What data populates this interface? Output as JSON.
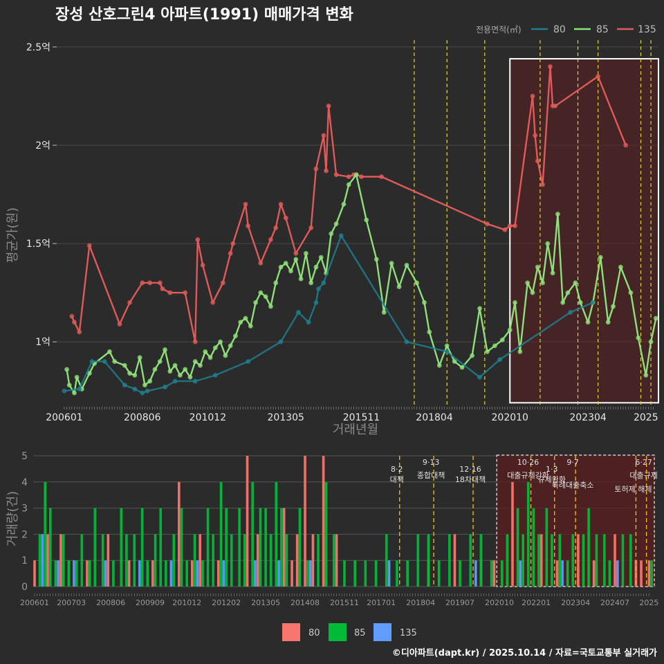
{
  "title": "장성 산호그린4 아파트(1991) 매매가격 변화",
  "caption": "©디아파트(dapt.kr) / 2025.10.14 / 자료=국토교통부 실거래가",
  "colors": {
    "s80": "#1f7f8f",
    "s85": "#8fe07a",
    "s135": "#e05a5a",
    "b80": "#f8766d",
    "b85": "#00ba38",
    "b135": "#619cff",
    "vline": "#e6d23a",
    "vline2": "#f2b705"
  },
  "legend": {
    "title": "전용면적(㎡)",
    "items": [
      "80",
      "85",
      "135"
    ]
  },
  "bottom_legend": {
    "items": [
      "80",
      "85",
      "135"
    ]
  },
  "chart_data": [
    {
      "type": "line",
      "title": "장성 산호그린4 아파트(1991) 매매가격 변화",
      "xlabel": "거래년월",
      "ylabel": "평균가(원)",
      "x_unit": "months since 2006-01",
      "xlim": [
        -3,
        236
      ],
      "ylim": [
        0.67,
        2.57
      ],
      "yticks": [
        1,
        1.5,
        2,
        2.5
      ],
      "ytick_labels": [
        "1억",
        "1.5억",
        "2억",
        "2.5억"
      ],
      "xticks": [
        0,
        31,
        57,
        88,
        118,
        147,
        177,
        208,
        231
      ],
      "xtick_labels": [
        "200601",
        "200806",
        "201012",
        "201305",
        "201511",
        "201804",
        "202010",
        "202304",
        "2025"
      ],
      "highlight_range": [
        177,
        236
      ],
      "policy_lines": [
        139,
        152,
        167,
        189,
        204,
        212,
        229,
        233
      ],
      "series": [
        {
          "name": "135",
          "color_key": "s135",
          "x": [
            3,
            4,
            6,
            10,
            22,
            26,
            31,
            34,
            38,
            39,
            42,
            48,
            52,
            53,
            55,
            59,
            63,
            66,
            67,
            72,
            73,
            78,
            82,
            84,
            86,
            88,
            92,
            98,
            100,
            103,
            104,
            105,
            108,
            113,
            115,
            116,
            118,
            126,
            168,
            175,
            177,
            179,
            186,
            187,
            188,
            190,
            193,
            194,
            195,
            212,
            223
          ],
          "y": [
            1.13,
            1.1,
            1.05,
            1.49,
            1.09,
            1.2,
            1.3,
            1.3,
            1.3,
            1.27,
            1.25,
            1.25,
            1.0,
            1.52,
            1.39,
            1.2,
            1.3,
            1.45,
            1.5,
            1.7,
            1.59,
            1.4,
            1.52,
            1.58,
            1.7,
            1.63,
            1.45,
            1.58,
            1.88,
            2.05,
            1.87,
            2.2,
            1.85,
            1.84,
            1.85,
            1.85,
            1.84,
            1.84,
            1.6,
            1.57,
            1.59,
            1.59,
            2.25,
            2.05,
            1.92,
            1.8,
            2.4,
            2.2,
            2.2,
            2.35,
            2.0
          ]
        },
        {
          "name": "85",
          "color_key": "s85",
          "x": [
            1,
            2,
            4,
            5,
            7,
            10,
            12,
            18,
            20,
            24,
            26,
            28,
            30,
            32,
            34,
            36,
            38,
            40,
            42,
            44,
            46,
            48,
            50,
            52,
            54,
            56,
            58,
            60,
            62,
            64,
            66,
            68,
            70,
            72,
            74,
            76,
            78,
            80,
            82,
            84,
            86,
            88,
            90,
            92,
            94,
            96,
            98,
            100,
            102,
            104,
            106,
            108,
            111,
            113,
            116,
            120,
            124,
            127,
            130,
            133,
            136,
            140,
            143,
            145,
            149,
            152,
            155,
            158,
            162,
            165,
            168,
            171,
            174,
            177,
            179,
            181,
            184,
            186,
            188,
            190,
            192,
            194,
            196,
            198,
            200,
            203,
            205,
            208,
            210,
            213,
            216,
            218,
            221,
            225,
            228,
            231,
            233,
            235
          ],
          "y": [
            0.86,
            0.78,
            0.74,
            0.82,
            0.76,
            0.84,
            0.89,
            0.95,
            0.9,
            0.88,
            0.84,
            0.83,
            0.92,
            0.78,
            0.8,
            0.86,
            0.9,
            0.96,
            0.85,
            0.88,
            0.83,
            0.86,
            0.82,
            0.9,
            0.88,
            0.95,
            0.92,
            0.97,
            1.0,
            0.93,
            0.98,
            1.03,
            1.1,
            1.12,
            1.08,
            1.2,
            1.25,
            1.23,
            1.18,
            1.3,
            1.38,
            1.4,
            1.36,
            1.42,
            1.32,
            1.45,
            1.3,
            1.38,
            1.43,
            1.35,
            1.55,
            1.6,
            1.7,
            1.8,
            1.85,
            1.62,
            1.42,
            1.15,
            1.4,
            1.28,
            1.39,
            1.3,
            1.2,
            1.05,
            0.88,
            0.98,
            0.9,
            0.87,
            0.93,
            1.17,
            0.95,
            0.98,
            1.01,
            1.06,
            1.2,
            0.95,
            1.3,
            1.25,
            1.38,
            1.3,
            1.5,
            1.35,
            1.65,
            1.2,
            1.25,
            1.3,
            1.2,
            1.1,
            1.2,
            1.43,
            1.1,
            1.18,
            1.38,
            1.25,
            1.02,
            0.83,
            1.0,
            1.12
          ]
        },
        {
          "name": "80",
          "color_key": "s80",
          "x": [
            0,
            6,
            11,
            16,
            24,
            28,
            31,
            33,
            40,
            44,
            52,
            60,
            73,
            86,
            93,
            97,
            100,
            101,
            103,
            110,
            136,
            152,
            165,
            173,
            201,
            210
          ],
          "y": [
            0.75,
            0.76,
            0.9,
            0.9,
            0.78,
            0.76,
            0.74,
            0.75,
            0.77,
            0.8,
            0.8,
            0.83,
            0.9,
            1.0,
            1.15,
            1.1,
            1.2,
            1.27,
            1.3,
            1.54,
            1.0,
            0.95,
            0.82,
            0.91,
            1.15,
            1.2
          ]
        }
      ]
    },
    {
      "type": "bar",
      "title": "",
      "xlabel": "",
      "ylabel": "거래량(건)",
      "ylim": [
        0,
        5
      ],
      "yticks": [
        0,
        1,
        2,
        3,
        4,
        5
      ],
      "xticks": [
        0,
        14,
        29,
        44,
        58,
        73,
        88,
        103,
        118,
        132,
        147,
        162,
        177,
        191,
        206,
        221,
        234
      ],
      "xtick_labels": [
        "200601",
        "200703",
        "200806",
        "200909",
        "201012",
        "201202",
        "201305",
        "201408",
        "201511",
        "201701",
        "201804",
        "201907",
        "202010",
        "202201",
        "202304",
        "202407",
        "2025"
      ],
      "highlight_range": [
        176,
        236
      ],
      "policy_events": [
        {
          "x": 139,
          "date": "8·2",
          "label": "대책"
        },
        {
          "x": 152,
          "date": "9·13",
          "label": "종합대책"
        },
        {
          "x": 167,
          "date": "12·16",
          "label": "18차대책"
        },
        {
          "x": 189,
          "date": "10·26",
          "label": "대출규제강화"
        },
        {
          "x": 198,
          "date": "1·3",
          "label": "규제완화"
        },
        {
          "x": 206,
          "date": "9·7",
          "label": "특례대출축소"
        },
        {
          "x": 229,
          "date": "",
          "label": "토허제 해제"
        },
        {
          "x": 233,
          "date": "6·27",
          "label": "대출규제"
        }
      ],
      "series": [
        {
          "name": "80",
          "color_key": "b80",
          "x": [
            0,
            5,
            10,
            20,
            28,
            36,
            45,
            55,
            60,
            63,
            70,
            81,
            85,
            95,
            98,
            100,
            103,
            106,
            110,
            115,
            150,
            160,
            170,
            175,
            182,
            193,
            199,
            207,
            213,
            221,
            229,
            231,
            234
          ],
          "y": [
            1,
            2,
            2,
            1,
            2,
            1,
            1,
            4,
            1,
            2,
            1,
            5,
            2,
            3,
            1,
            2,
            5,
            2,
            5,
            2,
            1,
            2,
            1,
            1,
            4,
            2,
            1,
            2,
            1,
            2,
            1,
            1,
            1
          ]
        },
        {
          "name": "85",
          "color_key": "b85",
          "x": [
            2,
            4,
            6,
            8,
            11,
            13,
            16,
            18,
            21,
            23,
            26,
            30,
            33,
            35,
            38,
            41,
            43,
            46,
            48,
            50,
            53,
            56,
            58,
            61,
            64,
            66,
            68,
            71,
            73,
            75,
            78,
            80,
            83,
            86,
            88,
            90,
            92,
            94,
            96,
            101,
            104,
            108,
            111,
            114,
            118,
            122,
            126,
            130,
            134,
            138,
            142,
            146,
            150,
            154,
            158,
            162,
            166,
            170,
            174,
            178,
            180,
            184,
            186,
            188,
            190,
            192,
            195,
            197,
            200,
            203,
            205,
            209,
            211,
            214,
            217,
            219,
            224,
            227,
            235
          ],
          "y": [
            2,
            4,
            3,
            1,
            2,
            1,
            1,
            2,
            1,
            3,
            2,
            1,
            3,
            2,
            2,
            3,
            1,
            2,
            3,
            1,
            2,
            3,
            1,
            2,
            1,
            3,
            2,
            4,
            3,
            2,
            3,
            2,
            4,
            3,
            3,
            2,
            4,
            3,
            2,
            3,
            1,
            2,
            4,
            2,
            1,
            1,
            1,
            1,
            2,
            1,
            1,
            2,
            2,
            1,
            2,
            1,
            2,
            2,
            1,
            1,
            2,
            3,
            2,
            4,
            3,
            2,
            3,
            2,
            2,
            1,
            2,
            2,
            3,
            2,
            2,
            1,
            2,
            2,
            1
          ]
        },
        {
          "name": "135",
          "color_key": "b135",
          "x": [
            3,
            9,
            15,
            27,
            40,
            52,
            62,
            72,
            84,
            93,
            105,
            135,
            168,
            185,
            201,
            222
          ],
          "y": [
            2,
            1,
            1,
            1,
            1,
            1,
            1,
            1,
            1,
            1,
            1,
            1,
            1,
            1,
            1,
            1
          ]
        }
      ]
    }
  ]
}
